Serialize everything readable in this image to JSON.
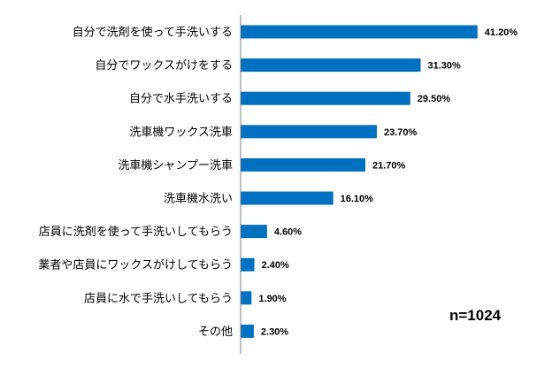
{
  "chart_data": {
    "type": "bar",
    "orientation": "horizontal",
    "categories": [
      "自分で洗剤を使って手洗いする",
      "自分でワックスがけをする",
      "自分で水手洗いする",
      "洗車機ワックス洗車",
      "洗車機シャンプー洗車",
      "洗車機水洗い",
      "店員に洗剤を使って手洗いしてもらう",
      "業者や店員にワックスがけしてもらう",
      "店員に水で手洗いしてもらう",
      "その他"
    ],
    "values": [
      41.2,
      31.3,
      29.5,
      23.7,
      21.7,
      16.1,
      4.6,
      2.4,
      1.9,
      2.3
    ],
    "value_labels": [
      "41.20%",
      "31.30%",
      "29.50%",
      "23.70%",
      "21.70%",
      "16.10%",
      "4.60%",
      "2.40%",
      "1.90%",
      "2.30%"
    ],
    "annotation": "n=1024",
    "bar_color": "#0070C0",
    "axis_color": "#7F7F7F",
    "grid": false,
    "legend": false
  }
}
